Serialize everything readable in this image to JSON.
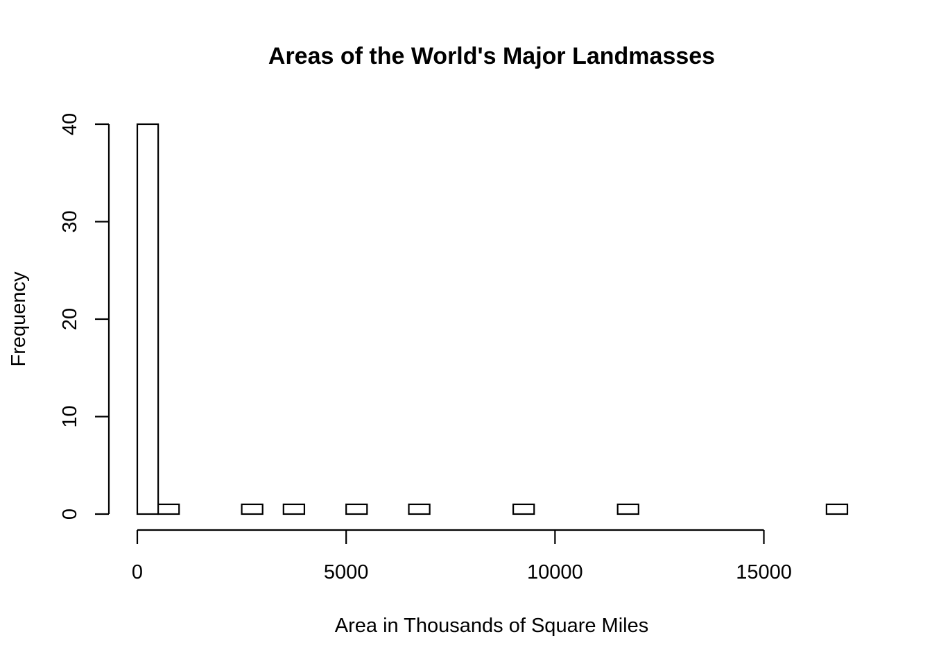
{
  "chart_data": {
    "type": "bar",
    "subtype": "histogram",
    "title": "Areas of the World's Major Landmasses",
    "xlabel": "Area in Thousands of Square Miles",
    "ylabel": "Frequency",
    "bin_width": 500,
    "bins": [
      {
        "x0": 0,
        "x1": 500,
        "count": 40
      },
      {
        "x0": 500,
        "x1": 1000,
        "count": 1
      },
      {
        "x0": 1000,
        "x1": 1500,
        "count": 0
      },
      {
        "x0": 1500,
        "x1": 2000,
        "count": 0
      },
      {
        "x0": 2000,
        "x1": 2500,
        "count": 0
      },
      {
        "x0": 2500,
        "x1": 3000,
        "count": 1
      },
      {
        "x0": 3000,
        "x1": 3500,
        "count": 0
      },
      {
        "x0": 3500,
        "x1": 4000,
        "count": 1
      },
      {
        "x0": 4000,
        "x1": 4500,
        "count": 0
      },
      {
        "x0": 4500,
        "x1": 5000,
        "count": 0
      },
      {
        "x0": 5000,
        "x1": 5500,
        "count": 1
      },
      {
        "x0": 5500,
        "x1": 6000,
        "count": 0
      },
      {
        "x0": 6000,
        "x1": 6500,
        "count": 0
      },
      {
        "x0": 6500,
        "x1": 7000,
        "count": 1
      },
      {
        "x0": 7000,
        "x1": 7500,
        "count": 0
      },
      {
        "x0": 7500,
        "x1": 8000,
        "count": 0
      },
      {
        "x0": 8000,
        "x1": 8500,
        "count": 0
      },
      {
        "x0": 8500,
        "x1": 9000,
        "count": 0
      },
      {
        "x0": 9000,
        "x1": 9500,
        "count": 1
      },
      {
        "x0": 9500,
        "x1": 10000,
        "count": 0
      },
      {
        "x0": 10000,
        "x1": 10500,
        "count": 0
      },
      {
        "x0": 10500,
        "x1": 11000,
        "count": 0
      },
      {
        "x0": 11000,
        "x1": 11500,
        "count": 0
      },
      {
        "x0": 11500,
        "x1": 12000,
        "count": 1
      },
      {
        "x0": 12000,
        "x1": 12500,
        "count": 0
      },
      {
        "x0": 12500,
        "x1": 13000,
        "count": 0
      },
      {
        "x0": 13000,
        "x1": 13500,
        "count": 0
      },
      {
        "x0": 13500,
        "x1": 14000,
        "count": 0
      },
      {
        "x0": 14000,
        "x1": 14500,
        "count": 0
      },
      {
        "x0": 14500,
        "x1": 15000,
        "count": 0
      },
      {
        "x0": 15000,
        "x1": 15500,
        "count": 0
      },
      {
        "x0": 15500,
        "x1": 16000,
        "count": 0
      },
      {
        "x0": 16000,
        "x1": 16500,
        "count": 0
      },
      {
        "x0": 16500,
        "x1": 17000,
        "count": 1
      }
    ],
    "x_ticks": [
      0,
      5000,
      10000,
      15000
    ],
    "y_ticks": [
      0,
      10,
      20,
      30,
      40
    ],
    "xlim": [
      0,
      17000
    ],
    "ylim": [
      0,
      40
    ],
    "grid": false,
    "legend": "none"
  }
}
